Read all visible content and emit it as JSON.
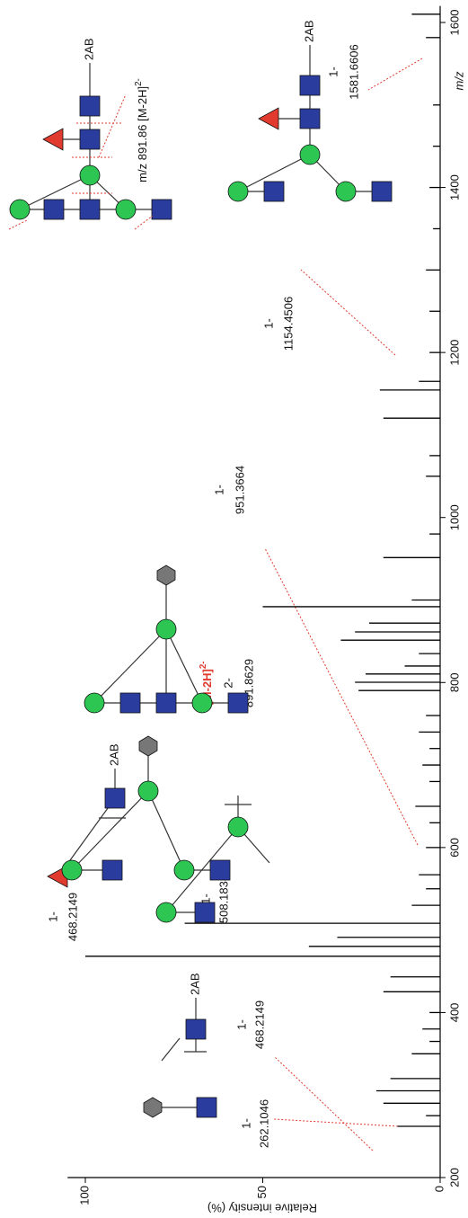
{
  "chart_data": {
    "type": "spectrum",
    "x": [
      262.1,
      275,
      290.1,
      305.1,
      320,
      350,
      365,
      380,
      400,
      425.2,
      443.2,
      468.2,
      480.2,
      491.2,
      508.2,
      530,
      550,
      567,
      600,
      630,
      650,
      680,
      700,
      720,
      740,
      760,
      790.3,
      800.3,
      810.3,
      820,
      835,
      851.3,
      861.3,
      872,
      891.9,
      900,
      951.4,
      980,
      1050,
      1075,
      1120.4,
      1154.5,
      1165,
      1200,
      1250,
      1300,
      1350,
      1400,
      1450,
      1500,
      1581.7,
      1610
    ],
    "values": [
      12,
      4,
      16,
      18,
      14,
      8,
      3,
      5,
      3,
      16,
      14,
      100,
      37,
      29,
      72,
      8,
      4,
      6,
      4,
      3,
      7,
      3,
      5,
      3,
      6,
      4,
      23,
      24,
      21,
      10,
      6,
      28,
      24,
      20,
      50,
      8,
      16,
      3,
      4,
      3,
      16,
      17,
      6,
      3,
      3,
      4,
      2,
      3,
      2,
      2,
      4,
      8
    ],
    "color": "#000000",
    "xlabel": "m/z",
    "ylabel": "Relative intensity (%)",
    "xlim": [
      200,
      1620
    ],
    "xticks": [
      200,
      400,
      600,
      800,
      1000,
      1200,
      1400,
      1600
    ],
    "ylim": [
      0,
      105
    ],
    "yticks": [
      0,
      50,
      100
    ],
    "peak_labels": [
      {
        "charge": "1-",
        "mz": "262.1046"
      },
      {
        "charge": "1-",
        "mz": "468.2149"
      },
      {
        "charge": "1-",
        "mz": "468.2149"
      },
      {
        "charge": "1-",
        "mz": "508.1838"
      },
      {
        "charge": "2-",
        "mz": "891.8629"
      },
      {
        "charge": "1-",
        "mz": "951.3664"
      },
      {
        "charge": "1-",
        "mz": "1154.4506"
      },
      {
        "charge": "1-",
        "mz": "1581.6606"
      }
    ],
    "precursor_label": {
      "text": "[M-2H]",
      "superscript": "2-"
    },
    "precursor_note": {
      "text": "m/z 891.86 [M-2H]",
      "superscript": "2-"
    },
    "reducing_end_labels": [
      "2AB",
      "2AB",
      "2AB",
      "2AB"
    ]
  }
}
